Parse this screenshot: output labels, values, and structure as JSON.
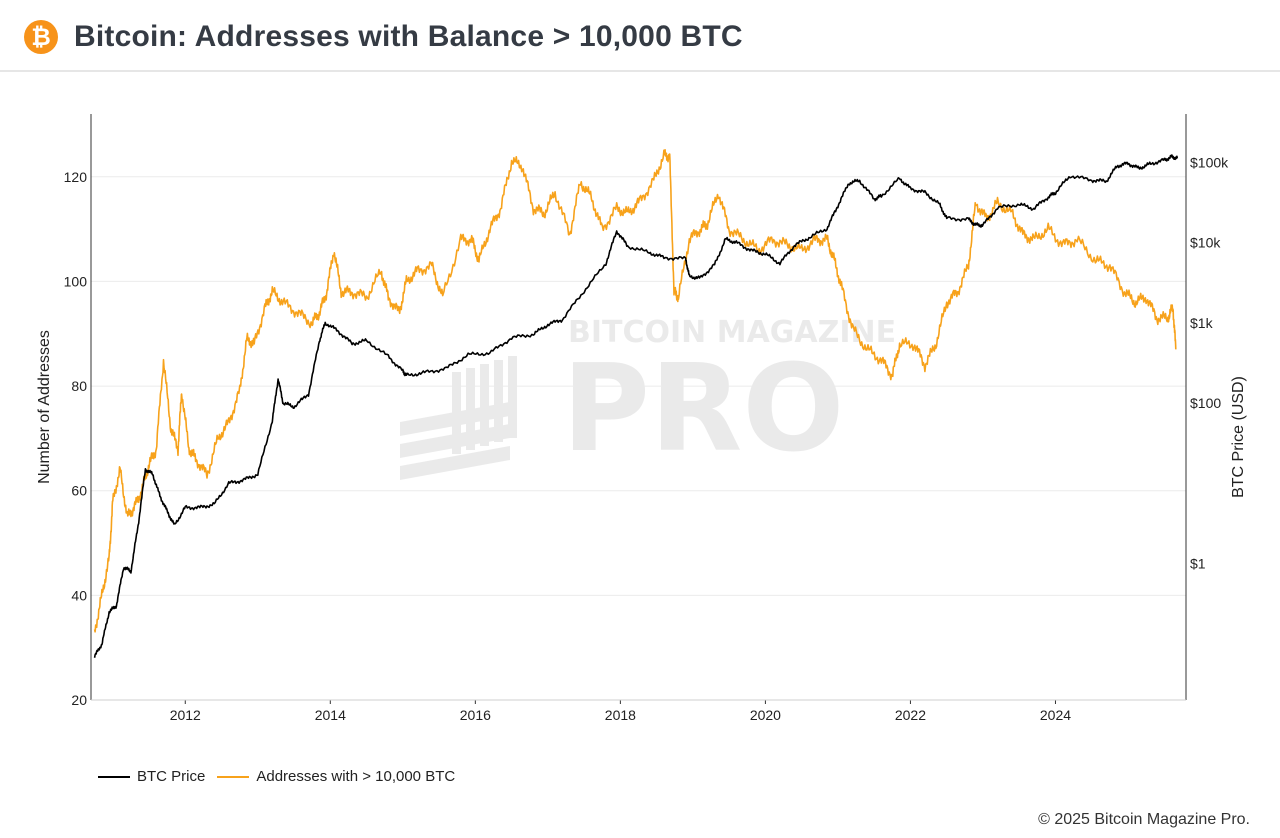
{
  "header": {
    "logo_icon": "bitcoin-logo-icon",
    "logo_glyph": "₿",
    "title": "Bitcoin: Addresses with Balance > 10,000 BTC"
  },
  "watermark": {
    "line1": "BITCOIN MAGAZINE",
    "line2": "PRO"
  },
  "footer": {
    "copyright": "© 2025 Bitcoin Magazine Pro."
  },
  "colors": {
    "price": "#000000",
    "addresses": "#f7a21b",
    "grid": "#ebebeb",
    "axis": "#333333"
  },
  "chart_data": {
    "type": "line",
    "title": "Bitcoin: Addresses with Balance > 10,000 BTC",
    "xlabel": "",
    "ylabel": "Number of Addresses",
    "y2label": "BTC Price (USD)",
    "xlim": [
      2010.7,
      2025.8
    ],
    "ylim": [
      20,
      132
    ],
    "y2_scale": "log",
    "y2lim": [
      0.02,
      400000
    ],
    "x_ticks": [
      2012,
      2014,
      2016,
      2018,
      2020,
      2022,
      2024
    ],
    "y_ticks": [
      20,
      40,
      60,
      80,
      100,
      120
    ],
    "y2_ticks": [
      {
        "value": 1,
        "label": "$1"
      },
      {
        "value": 100,
        "label": "$100"
      },
      {
        "value": 1000,
        "label": "$1k"
      },
      {
        "value": 10000,
        "label": "$10k"
      },
      {
        "value": 100000,
        "label": "$100k"
      }
    ],
    "grid": true,
    "legend_position": "bottom-left",
    "series": [
      {
        "name": "BTC Price",
        "axis": "right",
        "color": "#000000",
        "points": [
          [
            2010.75,
            0.07
          ],
          [
            2010.85,
            0.1
          ],
          [
            2010.95,
            0.25
          ],
          [
            2011.05,
            0.3
          ],
          [
            2011.15,
            0.9
          ],
          [
            2011.25,
            0.8
          ],
          [
            2011.35,
            3
          ],
          [
            2011.45,
            15
          ],
          [
            2011.55,
            13
          ],
          [
            2011.65,
            7
          ],
          [
            2011.75,
            4.5
          ],
          [
            2011.85,
            3
          ],
          [
            2012.0,
            5
          ],
          [
            2012.2,
            5
          ],
          [
            2012.4,
            5.5
          ],
          [
            2012.6,
            10
          ],
          [
            2012.8,
            11
          ],
          [
            2013.0,
            13
          ],
          [
            2013.2,
            60
          ],
          [
            2013.28,
            200
          ],
          [
            2013.35,
            100
          ],
          [
            2013.5,
            90
          ],
          [
            2013.7,
            130
          ],
          [
            2013.85,
            600
          ],
          [
            2013.93,
            1000
          ],
          [
            2014.1,
            800
          ],
          [
            2014.3,
            550
          ],
          [
            2014.5,
            600
          ],
          [
            2014.8,
            380
          ],
          [
            2015.0,
            250
          ],
          [
            2015.05,
            220
          ],
          [
            2015.3,
            240
          ],
          [
            2015.6,
            270
          ],
          [
            2015.9,
            400
          ],
          [
            2016.2,
            420
          ],
          [
            2016.5,
            650
          ],
          [
            2016.8,
            720
          ],
          [
            2017.0,
            950
          ],
          [
            2017.2,
            1100
          ],
          [
            2017.5,
            2500
          ],
          [
            2017.8,
            5500
          ],
          [
            2017.95,
            14000
          ],
          [
            2018.1,
            9000
          ],
          [
            2018.4,
            7500
          ],
          [
            2018.6,
            6500
          ],
          [
            2018.9,
            6300
          ],
          [
            2018.95,
            3800
          ],
          [
            2019.1,
            3600
          ],
          [
            2019.3,
            5300
          ],
          [
            2019.45,
            11000
          ],
          [
            2019.6,
            10000
          ],
          [
            2019.8,
            8000
          ],
          [
            2020.0,
            7200
          ],
          [
            2020.2,
            5500
          ],
          [
            2020.4,
            9200
          ],
          [
            2020.6,
            11500
          ],
          [
            2020.85,
            15000
          ],
          [
            2021.0,
            29000
          ],
          [
            2021.15,
            55000
          ],
          [
            2021.3,
            59000
          ],
          [
            2021.5,
            35000
          ],
          [
            2021.6,
            38000
          ],
          [
            2021.85,
            63000
          ],
          [
            2022.0,
            47000
          ],
          [
            2022.2,
            42000
          ],
          [
            2022.4,
            30000
          ],
          [
            2022.5,
            20000
          ],
          [
            2022.8,
            19500
          ],
          [
            2022.9,
            16500
          ],
          [
            2023.0,
            16500
          ],
          [
            2023.2,
            27000
          ],
          [
            2023.5,
            30000
          ],
          [
            2023.7,
            26500
          ],
          [
            2023.9,
            37000
          ],
          [
            2024.0,
            42000
          ],
          [
            2024.2,
            68000
          ],
          [
            2024.5,
            60000
          ],
          [
            2024.7,
            58000
          ],
          [
            2024.85,
            90000
          ],
          [
            2025.0,
            97000
          ],
          [
            2025.15,
            84000
          ],
          [
            2025.3,
            95000
          ],
          [
            2025.5,
            107000
          ],
          [
            2025.6,
            117000
          ],
          [
            2025.68,
            112000
          ]
        ]
      },
      {
        "name": "Addresses with > 10,000 BTC",
        "axis": "left",
        "color": "#f7a21b",
        "points": [
          [
            2010.75,
            33
          ],
          [
            2010.85,
            40
          ],
          [
            2010.95,
            47
          ],
          [
            2011.0,
            58
          ],
          [
            2011.1,
            64
          ],
          [
            2011.2,
            55
          ],
          [
            2011.3,
            57
          ],
          [
            2011.4,
            60
          ],
          [
            2011.5,
            65
          ],
          [
            2011.6,
            68
          ],
          [
            2011.7,
            85
          ],
          [
            2011.8,
            72
          ],
          [
            2011.9,
            68
          ],
          [
            2011.95,
            79
          ],
          [
            2012.05,
            68
          ],
          [
            2012.15,
            66
          ],
          [
            2012.3,
            63
          ],
          [
            2012.45,
            70
          ],
          [
            2012.6,
            73
          ],
          [
            2012.75,
            79
          ],
          [
            2012.85,
            89
          ],
          [
            2012.95,
            88
          ],
          [
            2013.1,
            95
          ],
          [
            2013.2,
            98
          ],
          [
            2013.35,
            96
          ],
          [
            2013.55,
            94
          ],
          [
            2013.75,
            92
          ],
          [
            2013.85,
            94
          ],
          [
            2013.95,
            98
          ],
          [
            2014.05,
            106
          ],
          [
            2014.15,
            98
          ],
          [
            2014.3,
            98
          ],
          [
            2014.5,
            97
          ],
          [
            2014.7,
            102
          ],
          [
            2014.8,
            97
          ],
          [
            2014.95,
            94
          ],
          [
            2015.05,
            100
          ],
          [
            2015.2,
            102
          ],
          [
            2015.4,
            103
          ],
          [
            2015.55,
            97
          ],
          [
            2015.8,
            108
          ],
          [
            2015.95,
            108
          ],
          [
            2016.05,
            104
          ],
          [
            2016.2,
            110
          ],
          [
            2016.35,
            114
          ],
          [
            2016.5,
            123
          ],
          [
            2016.65,
            122
          ],
          [
            2016.8,
            114
          ],
          [
            2016.95,
            113
          ],
          [
            2017.1,
            117
          ],
          [
            2017.3,
            109
          ],
          [
            2017.45,
            119
          ],
          [
            2017.6,
            116
          ],
          [
            2017.75,
            110
          ],
          [
            2017.95,
            114
          ],
          [
            2018.1,
            113
          ],
          [
            2018.25,
            115
          ],
          [
            2018.45,
            119
          ],
          [
            2018.6,
            124
          ],
          [
            2018.68,
            124
          ],
          [
            2018.74,
            98
          ],
          [
            2018.8,
            97
          ],
          [
            2018.95,
            108
          ],
          [
            2019.1,
            110
          ],
          [
            2019.2,
            111
          ],
          [
            2019.35,
            117
          ],
          [
            2019.5,
            110
          ],
          [
            2019.7,
            108
          ],
          [
            2019.9,
            106
          ],
          [
            2020.1,
            108
          ],
          [
            2020.3,
            107
          ],
          [
            2020.5,
            106
          ],
          [
            2020.7,
            108
          ],
          [
            2020.85,
            108
          ],
          [
            2020.95,
            104
          ],
          [
            2021.05,
            99
          ],
          [
            2021.2,
            91
          ],
          [
            2021.4,
            87
          ],
          [
            2021.6,
            85
          ],
          [
            2021.75,
            82
          ],
          [
            2021.85,
            88
          ],
          [
            2022.05,
            88
          ],
          [
            2022.2,
            84
          ],
          [
            2022.35,
            88
          ],
          [
            2022.5,
            96
          ],
          [
            2022.65,
            98
          ],
          [
            2022.8,
            103
          ],
          [
            2022.9,
            115
          ],
          [
            2023.05,
            112
          ],
          [
            2023.2,
            115
          ],
          [
            2023.4,
            113
          ],
          [
            2023.55,
            109
          ],
          [
            2023.7,
            108
          ],
          [
            2023.9,
            110
          ],
          [
            2024.1,
            107
          ],
          [
            2024.3,
            108
          ],
          [
            2024.55,
            104
          ],
          [
            2024.75,
            103
          ],
          [
            2024.95,
            98
          ],
          [
            2025.1,
            96
          ],
          [
            2025.25,
            97
          ],
          [
            2025.4,
            93
          ],
          [
            2025.55,
            93
          ],
          [
            2025.62,
            95
          ],
          [
            2025.66,
            87
          ]
        ]
      }
    ]
  }
}
